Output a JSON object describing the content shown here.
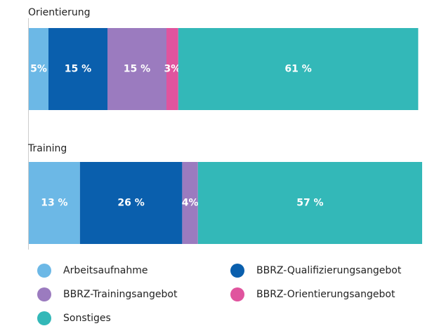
{
  "chart_data": {
    "type": "stacked-barh",
    "categories": [
      "Orientierung",
      "Training"
    ],
    "series": [
      {
        "name": "Arbeitsaufnahme",
        "color": "#6cb8e6",
        "values": [
          5,
          13
        ],
        "value_labels": [
          "5%",
          "13 %"
        ]
      },
      {
        "name": "BBRZ-Qualifizierungsangebot",
        "color": "#0a5fad",
        "values": [
          15,
          26
        ],
        "value_labels": [
          "15 %",
          "26 %"
        ]
      },
      {
        "name": "BBRZ-Trainingsangebot",
        "color": "#9b7bbf",
        "values": [
          15,
          4
        ],
        "value_labels": [
          "15 %",
          "4%"
        ]
      },
      {
        "name": "BBRZ-Orientierungsangebot",
        "color": "#e0549e",
        "values": [
          3,
          null
        ],
        "value_labels": [
          "3%",
          null
        ]
      },
      {
        "name": "Sonstiges",
        "color": "#33b8b8",
        "values": [
          61,
          57
        ],
        "value_labels": [
          "61 %",
          "57 %"
        ]
      }
    ],
    "xlim": [
      0,
      100
    ]
  }
}
